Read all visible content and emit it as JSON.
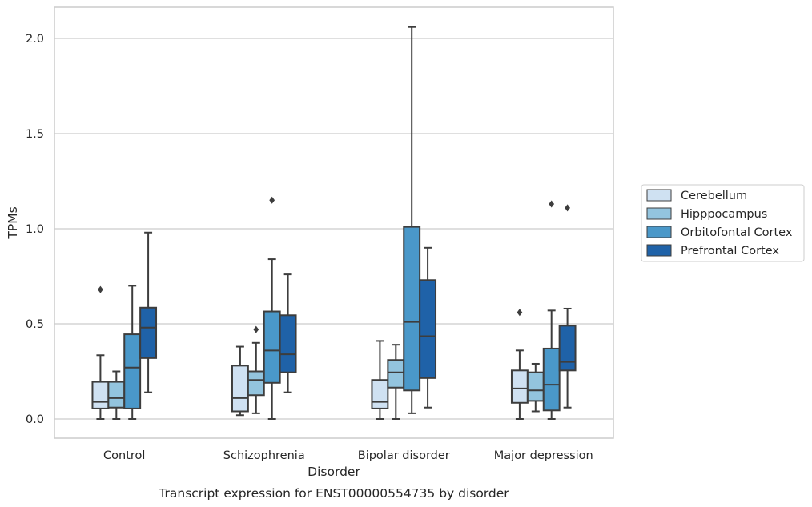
{
  "chart_data": {
    "type": "boxplot",
    "title": "",
    "caption": "Transcript expression for ENST00000554735 by disorder",
    "xlabel": "Disorder",
    "ylabel": "TPMs",
    "ylim": [
      -0.1,
      2.16
    ],
    "yticks": [
      {
        "value": 0.0,
        "label": "0.0"
      },
      {
        "value": 0.5,
        "label": "0.5"
      },
      {
        "value": 1.0,
        "label": "1.0"
      },
      {
        "value": 1.5,
        "label": "1.5"
      },
      {
        "value": 2.0,
        "label": "2.0"
      }
    ],
    "grid": "horizontal",
    "legend_placement": "right-outside",
    "categories": [
      "Control",
      "Schizophrenia",
      "Bipolar disorder",
      "Major depression"
    ],
    "series": [
      {
        "name": "Cerebellum",
        "color": "#cfe1f2",
        "boxes": [
          {
            "whisker_low": 0.0,
            "q1": 0.055,
            "median": 0.09,
            "q3": 0.195,
            "whisker_high": 0.335,
            "outliers": [
              0.68
            ]
          },
          {
            "whisker_low": 0.02,
            "q1": 0.04,
            "median": 0.11,
            "q3": 0.28,
            "whisker_high": 0.38,
            "outliers": []
          },
          {
            "whisker_low": 0.0,
            "q1": 0.055,
            "median": 0.09,
            "q3": 0.205,
            "whisker_high": 0.41,
            "outliers": []
          },
          {
            "whisker_low": 0.0,
            "q1": 0.085,
            "median": 0.16,
            "q3": 0.255,
            "whisker_high": 0.36,
            "outliers": [
              0.56
            ]
          }
        ]
      },
      {
        "name": "Hipppocampus",
        "color": "#93c4de",
        "boxes": [
          {
            "whisker_low": 0.0,
            "q1": 0.06,
            "median": 0.11,
            "q3": 0.195,
            "whisker_high": 0.25,
            "outliers": []
          },
          {
            "whisker_low": 0.03,
            "q1": 0.125,
            "median": 0.205,
            "q3": 0.25,
            "whisker_high": 0.4,
            "outliers": [
              0.47
            ]
          },
          {
            "whisker_low": 0.0,
            "q1": 0.165,
            "median": 0.245,
            "q3": 0.31,
            "whisker_high": 0.39,
            "outliers": []
          },
          {
            "whisker_low": 0.04,
            "q1": 0.095,
            "median": 0.15,
            "q3": 0.245,
            "whisker_high": 0.29,
            "outliers": []
          }
        ]
      },
      {
        "name": "Orbitofontal Cortex",
        "color": "#4a98c9",
        "boxes": [
          {
            "whisker_low": 0.0,
            "q1": 0.055,
            "median": 0.27,
            "q3": 0.445,
            "whisker_high": 0.7,
            "outliers": []
          },
          {
            "whisker_low": 0.0,
            "q1": 0.19,
            "median": 0.36,
            "q3": 0.565,
            "whisker_high": 0.84,
            "outliers": [
              1.15
            ]
          },
          {
            "whisker_low": 0.03,
            "q1": 0.15,
            "median": 0.51,
            "q3": 1.01,
            "whisker_high": 2.06,
            "outliers": []
          },
          {
            "whisker_low": 0.0,
            "q1": 0.045,
            "median": 0.18,
            "q3": 0.37,
            "whisker_high": 0.57,
            "outliers": [
              1.13
            ]
          }
        ]
      },
      {
        "name": "Prefrontal Cortex",
        "color": "#1f62a8",
        "boxes": [
          {
            "whisker_low": 0.14,
            "q1": 0.32,
            "median": 0.48,
            "q3": 0.585,
            "whisker_high": 0.98,
            "outliers": []
          },
          {
            "whisker_low": 0.14,
            "q1": 0.245,
            "median": 0.34,
            "q3": 0.545,
            "whisker_high": 0.76,
            "outliers": []
          },
          {
            "whisker_low": 0.06,
            "q1": 0.215,
            "median": 0.435,
            "q3": 0.73,
            "whisker_high": 0.9,
            "outliers": []
          },
          {
            "whisker_low": 0.06,
            "q1": 0.255,
            "median": 0.3,
            "q3": 0.49,
            "whisker_high": 0.58,
            "outliers": [
              1.11
            ]
          }
        ]
      }
    ]
  }
}
